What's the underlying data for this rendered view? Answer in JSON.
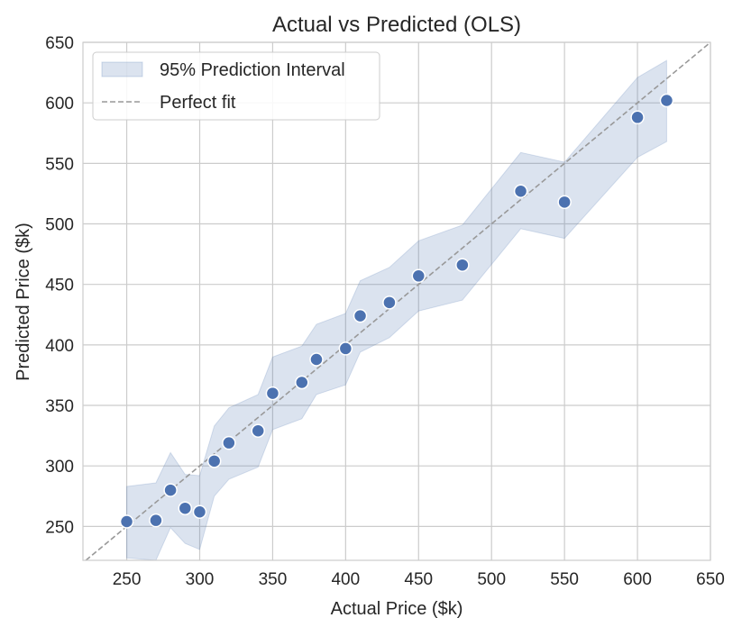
{
  "chart_data": {
    "type": "scatter",
    "title": "Actual vs Predicted (OLS)",
    "xlabel": "Actual Price ($k)",
    "ylabel": "Predicted Price ($k)",
    "xlim": [
      220,
      650
    ],
    "ylim": [
      222,
      650
    ],
    "xticks": [
      250,
      300,
      350,
      400,
      450,
      500,
      550,
      600,
      650
    ],
    "yticks": [
      250,
      300,
      350,
      400,
      450,
      500,
      550,
      600,
      650
    ],
    "grid": true,
    "legend_placement": "top-left",
    "legend": [
      {
        "label": "95% Prediction Interval",
        "kind": "band"
      },
      {
        "label": "Perfect fit",
        "kind": "dashed-line"
      }
    ],
    "points": {
      "x": [
        250,
        270,
        280,
        290,
        300,
        310,
        320,
        340,
        350,
        370,
        380,
        400,
        410,
        430,
        450,
        480,
        520,
        550,
        600,
        620
      ],
      "y": [
        254,
        255,
        280,
        265,
        262,
        304,
        319,
        329,
        360,
        369,
        388,
        397,
        424,
        435,
        457,
        466,
        527,
        518,
        588,
        602
      ]
    },
    "interval": {
      "x": [
        250,
        270,
        280,
        290,
        300,
        310,
        320,
        340,
        350,
        370,
        380,
        400,
        410,
        430,
        450,
        480,
        520,
        550,
        600,
        620
      ],
      "upper": [
        283,
        286,
        311,
        293,
        292,
        333,
        348,
        359,
        390,
        399,
        417,
        426,
        453,
        464,
        486,
        499,
        559,
        551,
        621,
        635
      ],
      "lower": [
        224,
        222,
        249,
        236,
        231,
        275,
        289,
        299,
        330,
        339,
        359,
        367,
        394,
        406,
        428,
        437,
        496,
        488,
        555,
        568
      ]
    },
    "colors": {
      "points": "#4c72b0",
      "band": "#4c72b0",
      "fit_line": "#999999",
      "grid": "#cccccc"
    }
  }
}
